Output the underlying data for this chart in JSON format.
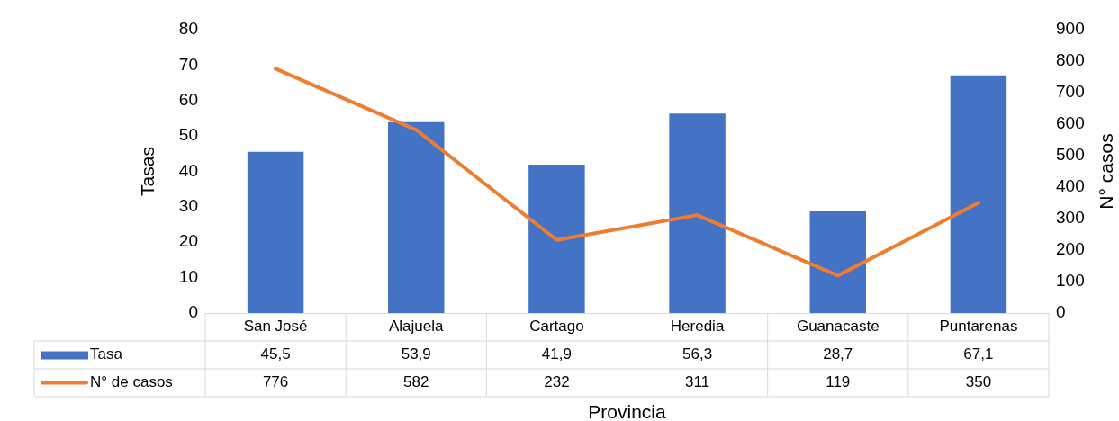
{
  "chart_data": {
    "type": "bar",
    "categories": [
      "San José",
      "Alajuela",
      "Cartago",
      "Heredia",
      "Guanacaste",
      "Puntarenas"
    ],
    "series": [
      {
        "name": "Tasa",
        "color": "#4472c4",
        "values": [
          45.5,
          53.9,
          41.9,
          56.3,
          28.7,
          67.1
        ],
        "value_labels": [
          "45,5",
          "53,9",
          "41,9",
          "56,3",
          "28,7",
          "67,1"
        ]
      },
      {
        "name": "N° de casos",
        "type": "line",
        "axis": "y2",
        "color": "#ed7d31",
        "values": [
          776,
          582,
          232,
          311,
          119,
          350
        ],
        "value_labels": [
          "776",
          "582",
          "232",
          "311",
          "119",
          "350"
        ]
      }
    ],
    "xlabel": "Provincia",
    "ylabel": "Tasas",
    "y2label": "N° casos",
    "ylim": [
      0,
      80
    ],
    "yticks": [
      0,
      10,
      20,
      30,
      40,
      50,
      60,
      70,
      80
    ],
    "y2lim": [
      0,
      900
    ],
    "y2ticks": [
      0,
      100,
      200,
      300,
      400,
      500,
      600,
      700,
      800,
      900
    ],
    "legend": "bottom",
    "marker": "none",
    "line_style": "solid"
  }
}
